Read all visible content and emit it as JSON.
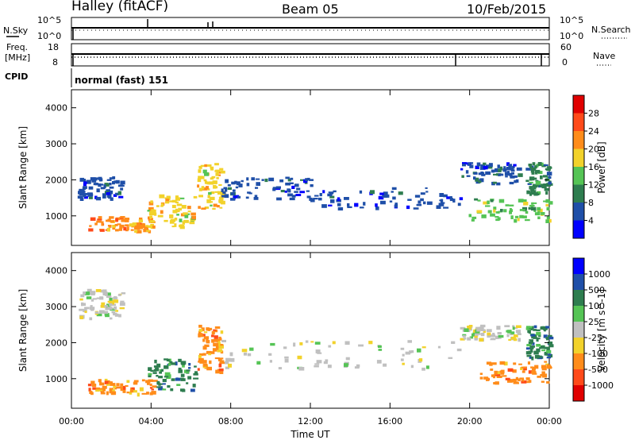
{
  "header": {
    "station": "Halley (fitACF)",
    "beam": "Beam 05",
    "date": "10/Feb/2015"
  },
  "panels": {
    "nsky": {
      "left_label": "N.Sky",
      "right_label": "N.Search",
      "left_ticks": [
        "10^5",
        "10^0"
      ],
      "right_ticks": [
        "10^5",
        "10^0"
      ]
    },
    "freq": {
      "left_label_1": "Freq.",
      "left_label_2": "[MHz]",
      "right_label": "Nave",
      "left_ticks": [
        "18",
        "8"
      ],
      "right_ticks": [
        "60",
        "0"
      ]
    },
    "cpid": {
      "label": "CPID",
      "value": "normal (fast) 151"
    }
  },
  "colors": {
    "power": [
      "#0000ff",
      "#1f4fa8",
      "#2e7d4f",
      "#55c455",
      "#f2d22b",
      "#ff8c1a",
      "#ff4a1a",
      "#e00000"
    ],
    "velocity": [
      "#0000ff",
      "#1f4fa8",
      "#2e7d4f",
      "#55c455",
      "#c0c0c0",
      "#f2d22b",
      "#ff8c1a",
      "#ff4a1a",
      "#e00000"
    ]
  },
  "chart_data": [
    {
      "type": "heatmap",
      "panel": "power",
      "xlabel": "",
      "ylabel": "Slant Range [km]",
      "x_ticks": [
        "00:00",
        "04:00",
        "08:00",
        "12:00",
        "16:00",
        "20:00",
        "00:00"
      ],
      "y_ticks": [
        1000,
        2000,
        3000,
        4000
      ],
      "xlim": [
        0,
        24
      ],
      "ylim": [
        180,
        4500
      ],
      "colorbar": {
        "label": "Power [dB]",
        "ticks": [
          "4",
          "8",
          "12",
          "16",
          "20",
          "24",
          "28"
        ],
        "range": [
          0,
          30
        ]
      },
      "echo_regions": [
        {
          "t": [
            0.3,
            2.5
          ],
          "r": [
            1500,
            2100
          ],
          "level": 6
        },
        {
          "t": [
            0.8,
            4.1
          ],
          "r": [
            600,
            1000
          ],
          "level": 20
        },
        {
          "t": [
            3.8,
            6.2
          ],
          "r": [
            700,
            1600
          ],
          "level": 18
        },
        {
          "t": [
            6.3,
            7.5
          ],
          "r": [
            1200,
            2500
          ],
          "level": 16
        },
        {
          "t": [
            7.5,
            12.0
          ],
          "r": [
            1500,
            2100
          ],
          "level": 6
        },
        {
          "t": [
            12.0,
            19.5
          ],
          "r": [
            1200,
            1800
          ],
          "level": 5
        },
        {
          "t": [
            19.5,
            22.5
          ],
          "r": [
            1900,
            2500
          ],
          "level": 5
        },
        {
          "t": [
            19.8,
            24.0
          ],
          "r": [
            900,
            1500
          ],
          "level": 12
        },
        {
          "t": [
            22.8,
            24.0
          ],
          "r": [
            1600,
            2500
          ],
          "level": 10
        }
      ]
    },
    {
      "type": "heatmap",
      "panel": "velocity",
      "xlabel": "Time UT",
      "ylabel": "Slant Range [km]",
      "x_ticks": [
        "00:00",
        "04:00",
        "08:00",
        "12:00",
        "16:00",
        "20:00",
        "00:00"
      ],
      "y_ticks": [
        1000,
        2000,
        3000,
        4000
      ],
      "xlim": [
        0,
        24
      ],
      "ylim": [
        180,
        4500
      ],
      "colorbar": {
        "label": "Velocity [m s^-1]",
        "ticks": [
          "1000",
          "500",
          "100",
          "25",
          "-25",
          "-100",
          "-500",
          "-1000"
        ],
        "range": [
          -1000,
          1000
        ]
      },
      "echo_regions": [
        {
          "t": [
            0.3,
            2.5
          ],
          "r": [
            2700,
            3500
          ],
          "v": 0
        },
        {
          "t": [
            0.8,
            4.1
          ],
          "r": [
            600,
            1000
          ],
          "v": -300
        },
        {
          "t": [
            3.8,
            6.2
          ],
          "r": [
            700,
            1600
          ],
          "v": 300
        },
        {
          "t": [
            6.3,
            7.5
          ],
          "r": [
            1200,
            2500
          ],
          "v": -200
        },
        {
          "t": [
            7.5,
            19.5
          ],
          "r": [
            1300,
            2100
          ],
          "v": 0
        },
        {
          "t": [
            19.5,
            22.5
          ],
          "r": [
            2100,
            2500
          ],
          "v": 0
        },
        {
          "t": [
            20.5,
            24.0
          ],
          "r": [
            900,
            1500
          ],
          "v": -400
        },
        {
          "t": [
            22.8,
            24.0
          ],
          "r": [
            1600,
            2500
          ],
          "v": 200
        }
      ]
    }
  ]
}
